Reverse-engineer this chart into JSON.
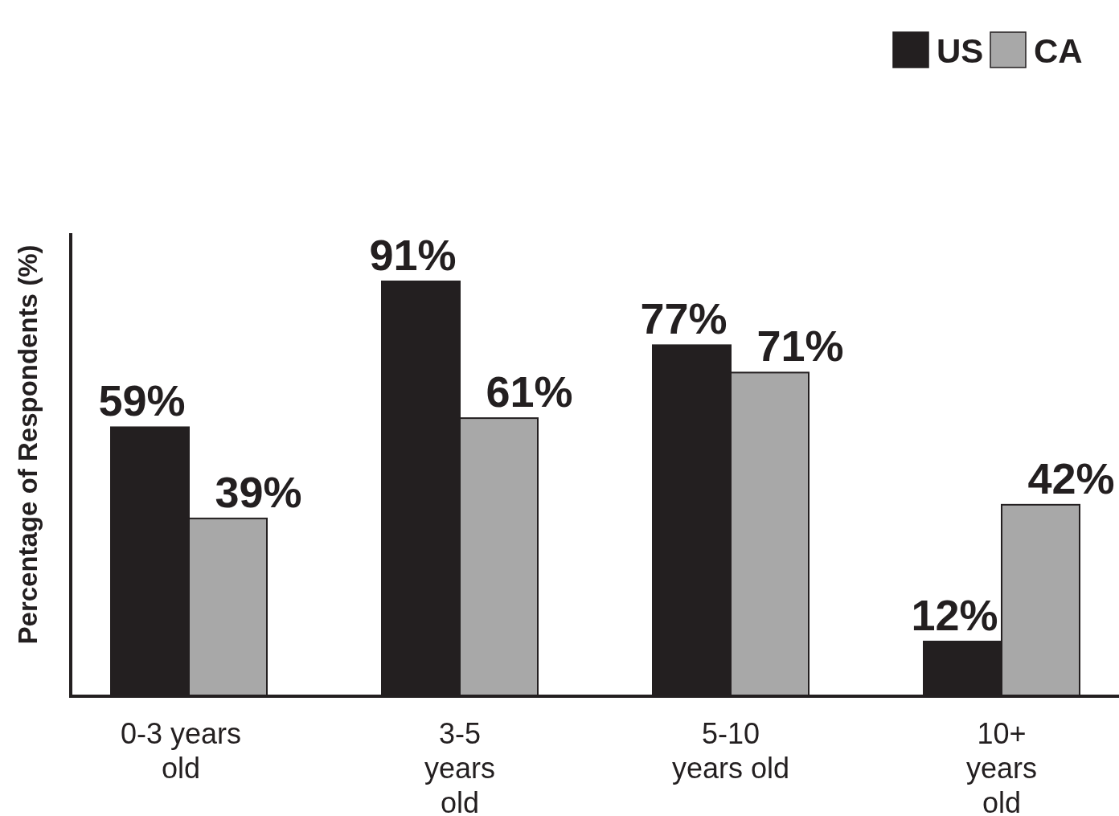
{
  "chart_data": {
    "type": "bar",
    "ylabel": "Percentage of Respondents (%)",
    "categories": [
      "0-3 years\nold",
      "3-5\nyears\nold",
      "5-10\nyears old",
      "10+\nyears\nold"
    ],
    "series": [
      {
        "name": "US",
        "color": "#231f20",
        "values": [
          59,
          91,
          77,
          12
        ],
        "value_labels": [
          "59%",
          "91%",
          "77%",
          "12%"
        ]
      },
      {
        "name": "CA",
        "color": "#a8a8a8",
        "values": [
          39,
          61,
          71,
          42
        ],
        "value_labels": [
          "39%",
          "61%",
          "71%",
          "42%"
        ]
      }
    ],
    "legend": "top right"
  }
}
